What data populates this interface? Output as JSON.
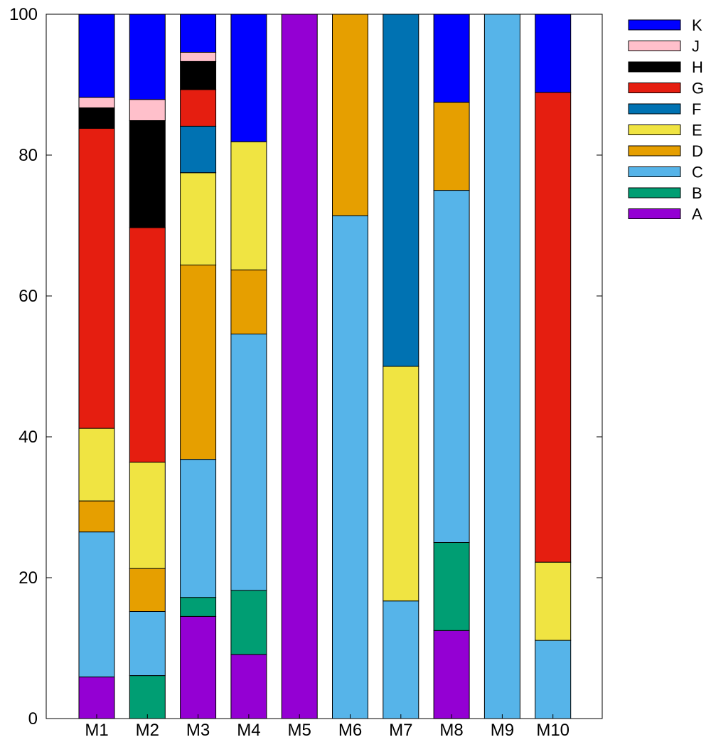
{
  "chart_data": {
    "type": "bar",
    "stacked": true,
    "title": "",
    "xlabel": "",
    "ylabel": "",
    "ylim": [
      0,
      100
    ],
    "yticks": [
      0,
      20,
      40,
      60,
      80,
      100
    ],
    "categories": [
      "M1",
      "M2",
      "M3",
      "M4",
      "M5",
      "M6",
      "M7",
      "M8",
      "M9",
      "M10"
    ],
    "legend_position": "outside-top-right",
    "series": [
      {
        "name": "A",
        "color": "#9400d3",
        "values": [
          5.9,
          0,
          14.5,
          9.1,
          100,
          0,
          0,
          12.5,
          0,
          0
        ]
      },
      {
        "name": "B",
        "color": "#009e73",
        "values": [
          0,
          6.1,
          2.7,
          9.1,
          0,
          0,
          0,
          12.5,
          0,
          0
        ]
      },
      {
        "name": "C",
        "color": "#56b4e9",
        "values": [
          20.6,
          9.1,
          19.6,
          36.4,
          0,
          71.4,
          16.7,
          50.0,
          100,
          11.1
        ]
      },
      {
        "name": "D",
        "color": "#e69f00",
        "values": [
          4.4,
          6.1,
          27.6,
          9.1,
          0,
          28.6,
          0,
          12.5,
          0,
          0
        ]
      },
      {
        "name": "E",
        "color": "#f0e442",
        "values": [
          10.3,
          15.1,
          13.1,
          18.2,
          0,
          0,
          33.3,
          0,
          0,
          11.1
        ]
      },
      {
        "name": "F",
        "color": "#0072b2",
        "values": [
          0,
          0,
          6.6,
          0,
          0,
          0,
          50.0,
          0,
          0,
          0
        ]
      },
      {
        "name": "G",
        "color": "#e51e10",
        "values": [
          42.6,
          33.3,
          5.2,
          0,
          0,
          0,
          0,
          0,
          0,
          66.7
        ]
      },
      {
        "name": "H",
        "color": "#000000",
        "values": [
          2.9,
          15.2,
          4.0,
          0,
          0,
          0,
          0,
          0,
          0,
          0
        ]
      },
      {
        "name": "J",
        "color": "#ffc0cb",
        "values": [
          1.5,
          3.0,
          1.3,
          0,
          0,
          0,
          0,
          0,
          0,
          0
        ]
      },
      {
        "name": "K",
        "color": "#0000ff",
        "values": [
          11.8,
          12.1,
          5.4,
          18.1,
          0,
          0,
          0,
          12.5,
          0,
          11.1
        ]
      }
    ]
  }
}
